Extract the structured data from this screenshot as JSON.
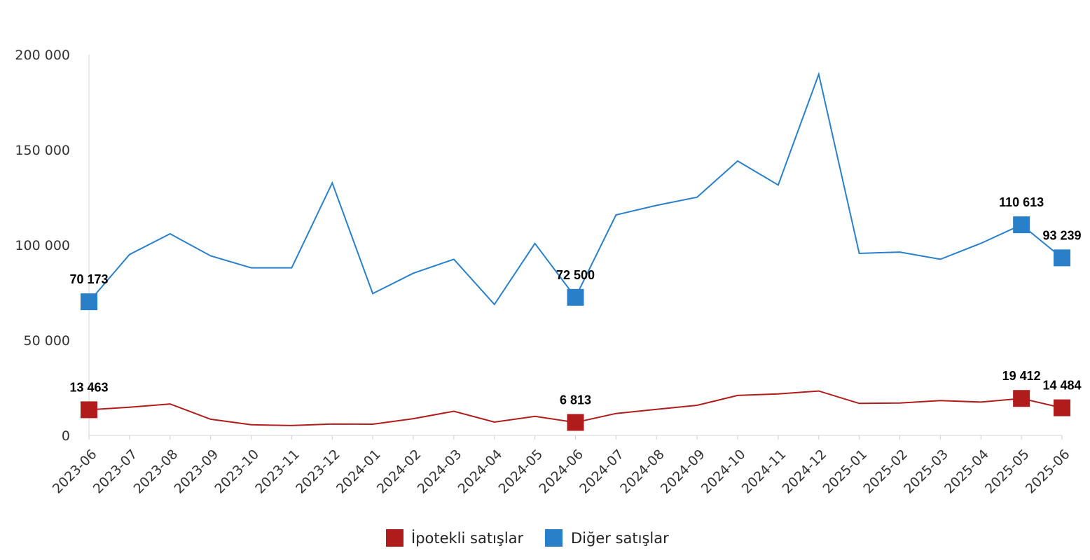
{
  "chart_data": {
    "type": "line",
    "title": "",
    "xlabel": "",
    "ylabel": "",
    "ylim": [
      0,
      200000
    ],
    "yticks": [
      0,
      50000,
      100000,
      150000,
      200000
    ],
    "ytick_labels": [
      "0",
      "50 000",
      "100 000",
      "150 000",
      "200 000"
    ],
    "grid": false,
    "legend_position": "bottom",
    "categories": [
      "2023-06",
      "2023-07",
      "2023-08",
      "2023-09",
      "2023-10",
      "2023-11",
      "2023-12",
      "2024-01",
      "2024-02",
      "2024-03",
      "2024-04",
      "2024-05",
      "2024-06",
      "2024-07",
      "2024-08",
      "2024-09",
      "2024-10",
      "2024-11",
      "2024-12",
      "2025-01",
      "2025-02",
      "2025-03",
      "2025-04",
      "2025-05",
      "2025-06"
    ],
    "series": [
      {
        "name": "İpotekli satışlar",
        "color": "#b01c1c",
        "values": [
          13463,
          14800,
          16500,
          8500,
          5600,
          5200,
          6000,
          5900,
          8800,
          12700,
          7000,
          10000,
          6813,
          11500,
          13700,
          15800,
          21000,
          21800,
          23300,
          16800,
          17000,
          18300,
          17500,
          19412,
          14484
        ],
        "labels": [
          {
            "index": 0,
            "text": "13 463"
          },
          {
            "index": 12,
            "text": "6 813"
          },
          {
            "index": 23,
            "text": "19 412"
          },
          {
            "index": 24,
            "text": "14 484"
          }
        ]
      },
      {
        "name": "Diğer satışlar",
        "color": "#2a7fc9",
        "values": [
          70173,
          95000,
          105900,
          94300,
          88000,
          88000,
          132600,
          74500,
          85200,
          92500,
          68800,
          100800,
          72500,
          115800,
          120800,
          125100,
          144100,
          131500,
          189700,
          95600,
          96300,
          92500,
          100900,
          110613,
          93239
        ],
        "labels": [
          {
            "index": 0,
            "text": "70 173"
          },
          {
            "index": 12,
            "text": "72 500"
          },
          {
            "index": 23,
            "text": "110 613"
          },
          {
            "index": 24,
            "text": "93 239"
          }
        ]
      }
    ]
  }
}
